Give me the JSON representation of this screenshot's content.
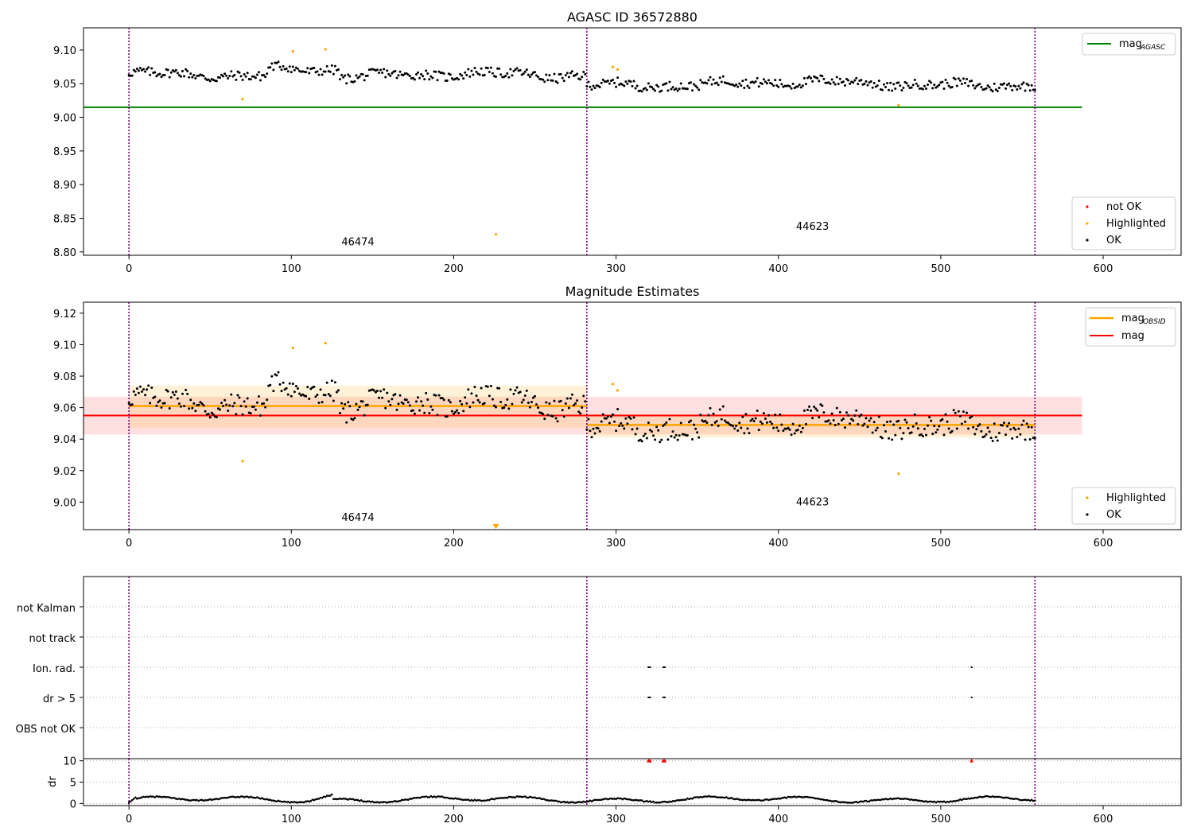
{
  "chart_data": [
    {
      "type": "scatter",
      "title": "AGASC ID 36572880",
      "xlim": [
        -28,
        648
      ],
      "ylim": [
        8.795,
        9.133
      ],
      "x_ticks": [
        0,
        100,
        200,
        300,
        400,
        500,
        600
      ],
      "y_ticks": [
        8.8,
        8.85,
        8.9,
        8.95,
        9.0,
        9.05,
        9.1
      ],
      "obsid_boundaries": [
        0,
        282,
        558
      ],
      "obsid_labels": [
        {
          "text": "46474",
          "x": 141,
          "y": 8.81
        },
        {
          "text": "44623",
          "x": 421,
          "y": 8.833
        }
      ],
      "reference_line": {
        "name": "mag_AGASC",
        "y": 9.015,
        "x_range": [
          -28,
          587
        ],
        "color": "#008000"
      },
      "ok_points": {
        "x_range": [
          0,
          558
        ],
        "step": 1,
        "baseline": 9.056
      },
      "highlighted": [
        [
          70,
          9.027
        ],
        [
          101,
          9.098
        ],
        [
          121,
          9.101
        ],
        [
          226,
          8.826
        ],
        [
          298,
          9.075
        ],
        [
          301,
          9.071
        ],
        [
          474,
          9.018
        ]
      ],
      "legend_lines": [
        {
          "label": "mag",
          "subscript": "AGASC",
          "color": "#008000"
        }
      ],
      "legend_markers": [
        {
          "label": "not OK",
          "color": "#ff0000"
        },
        {
          "label": "Highlighted",
          "color": "#ffa500"
        },
        {
          "label": "OK",
          "color": "#000000"
        }
      ]
    },
    {
      "type": "scatter",
      "title": "Magnitude Estimates",
      "xlim": [
        -28,
        648
      ],
      "ylim": [
        8.9825,
        9.127
      ],
      "x_ticks": [
        0,
        100,
        200,
        300,
        400,
        500,
        600
      ],
      "y_ticks": [
        9.0,
        9.02,
        9.04,
        9.06,
        9.08,
        9.1,
        9.12
      ],
      "obsid_boundaries": [
        0,
        282,
        558
      ],
      "obsid_labels": [
        {
          "text": "46474",
          "x": 141,
          "y": 8.988
        },
        {
          "text": "44623",
          "x": 421,
          "y": 8.998
        }
      ],
      "mag_line": {
        "name": "mag",
        "y": 9.055,
        "band": [
          9.043,
          9.067
        ],
        "x_range": [
          -28,
          587
        ],
        "color": "#ff0000"
      },
      "mag_obsid": [
        {
          "x_range": [
            0,
            282
          ],
          "y": 9.061,
          "band": [
            9.047,
            9.074
          ]
        },
        {
          "x_range": [
            282,
            558
          ],
          "y": 9.049,
          "band": [
            9.041,
            9.056
          ]
        }
      ],
      "highlighted": [
        [
          70,
          9.026
        ],
        [
          101,
          9.098
        ],
        [
          121,
          9.101
        ],
        [
          298,
          9.075
        ],
        [
          301,
          9.071
        ],
        [
          474,
          9.018
        ]
      ],
      "off_scale_marker": {
        "x": 226,
        "direction": "down",
        "color": "#ffa500"
      },
      "legend_lines": [
        {
          "label": "mag",
          "subscript": "OBSID",
          "color": "#ffa500"
        },
        {
          "label": "mag",
          "subscript": "",
          "color": "#ff0000"
        }
      ],
      "legend_markers": [
        {
          "label": "Highlighted",
          "color": "#ffa500"
        },
        {
          "label": "OK",
          "color": "#000000"
        }
      ]
    },
    {
      "type": "scatter",
      "title": "",
      "xlim": [
        -28,
        648
      ],
      "categories": [
        "not Kalman",
        "not track",
        "Ion. rad.",
        "dr > 5",
        "OBS not OK"
      ],
      "obsid_boundaries": [
        0,
        282,
        558
      ],
      "flags": {
        "Ion. rad.": [
          320,
          321,
          329,
          330,
          519
        ],
        "dr > 5": [
          320,
          321,
          329,
          330,
          519
        ]
      }
    },
    {
      "type": "line",
      "ylabel": "dr",
      "xlim": [
        -28,
        648
      ],
      "ylim": [
        -0.5,
        10.5
      ],
      "x_ticks": [
        0,
        100,
        200,
        300,
        400,
        500,
        600
      ],
      "y_ticks": [
        0,
        5,
        10
      ],
      "obsid_boundaries": [
        0,
        282,
        558
      ],
      "x_range": [
        0,
        558
      ],
      "dr_outliers": [
        320,
        321,
        329,
        330,
        519
      ],
      "outlier_color": "#ff0000"
    }
  ]
}
